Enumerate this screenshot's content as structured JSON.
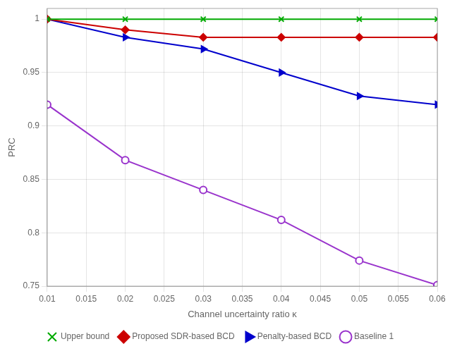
{
  "chart_data": {
    "type": "line",
    "xlabel": "Channel uncertainty ratio κ",
    "ylabel": "PRC",
    "x": [
      0.01,
      0.02,
      0.03,
      0.04,
      0.05,
      0.06
    ],
    "series": [
      {
        "name": "Upper bound",
        "color": "#00aa00",
        "marker": "x",
        "values": [
          1.0,
          1.0,
          1.0,
          1.0,
          1.0,
          1.0
        ]
      },
      {
        "name": "Proposed SDR-based BCD",
        "color": "#cc0000",
        "marker": "diamond",
        "values": [
          1.0,
          0.99,
          0.983,
          0.983,
          0.983,
          0.983
        ]
      },
      {
        "name": "Penalty-based BCD",
        "color": "#0000cc",
        "marker": "triangle-right",
        "values": [
          1.0,
          0.983,
          0.972,
          0.95,
          0.928,
          0.92
        ]
      },
      {
        "name": "Baseline 1",
        "color": "#9933cc",
        "marker": "circle-open",
        "values": [
          0.92,
          0.868,
          0.84,
          0.812,
          0.774,
          0.751
        ]
      }
    ],
    "xlim": [
      0.01,
      0.06
    ],
    "xticks": [
      0.01,
      0.015,
      0.02,
      0.025,
      0.03,
      0.035,
      0.04,
      0.045,
      0.05,
      0.055,
      0.06
    ],
    "ylim": [
      0.75,
      1.01
    ],
    "yticks": [
      0.75,
      0.8,
      0.85,
      0.9,
      0.95,
      1
    ],
    "grid": true,
    "legend": "bottom"
  }
}
